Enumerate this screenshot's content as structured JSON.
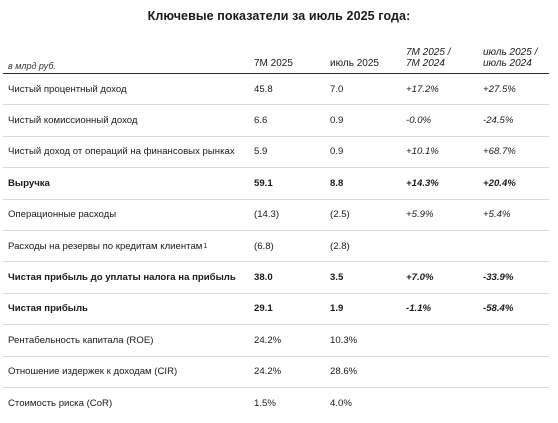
{
  "title": "Ключевые показатели за июль 2025 года:",
  "units": "в млрд руб.",
  "columns": [
    "7М 2025",
    "июль 2025",
    "7М 2025 /\n7М 2024",
    "июль 2025 /\nиюль 2024"
  ],
  "rows": [
    {
      "label": "Чистый процентный доход",
      "footnote": "",
      "bold": false,
      "v1": "45.8",
      "v2": "7.0",
      "v3": "+17.2%",
      "v4": "+27.5%"
    },
    {
      "label": "Чистый комиссионный доход",
      "footnote": "",
      "bold": false,
      "v1": "6.6",
      "v2": "0.9",
      "v3": "-0.0%",
      "v4": "-24.5%"
    },
    {
      "label": "Чистый доход от операций на финансовых рынках",
      "footnote": "",
      "bold": false,
      "v1": "5.9",
      "v2": "0.9",
      "v3": "+10.1%",
      "v4": "+68.7%"
    },
    {
      "label": "Выручка",
      "footnote": "",
      "bold": true,
      "v1": "59.1",
      "v2": "8.8",
      "v3": "+14.3%",
      "v4": "+20.4%"
    },
    {
      "label": "Операционные расходы",
      "footnote": "",
      "bold": false,
      "v1": "(14.3)",
      "v2": "(2.5)",
      "v3": "+5.9%",
      "v4": "+5.4%"
    },
    {
      "label": "Расходы на резервы по кредитам клиентам",
      "footnote": "1",
      "bold": false,
      "v1": "(6.8)",
      "v2": "(2.8)",
      "v3": "",
      "v4": ""
    },
    {
      "label": "Чистая прибыль до уплаты налога на прибыль",
      "footnote": "",
      "bold": true,
      "v1": "38.0",
      "v2": "3.5",
      "v3": "+7.0%",
      "v4": "-33.9%"
    },
    {
      "label": "Чистая прибыль",
      "footnote": "",
      "bold": true,
      "v1": "29.1",
      "v2": "1.9",
      "v3": "-1.1%",
      "v4": "-58.4%"
    },
    {
      "label": "Рентабельность капитала (ROE)",
      "footnote": "",
      "bold": false,
      "v1": "24.2%",
      "v2": "10.3%",
      "v3": "",
      "v4": ""
    },
    {
      "label": "Отношение издержек к доходам (CIR)",
      "footnote": "",
      "bold": false,
      "v1": "24.2%",
      "v2": "28.6%",
      "v3": "",
      "v4": ""
    },
    {
      "label": "Стоимость риска (CoR)",
      "footnote": "",
      "bold": false,
      "v1": "1.5%",
      "v2": "4.0%",
      "v3": "",
      "v4": ""
    }
  ]
}
